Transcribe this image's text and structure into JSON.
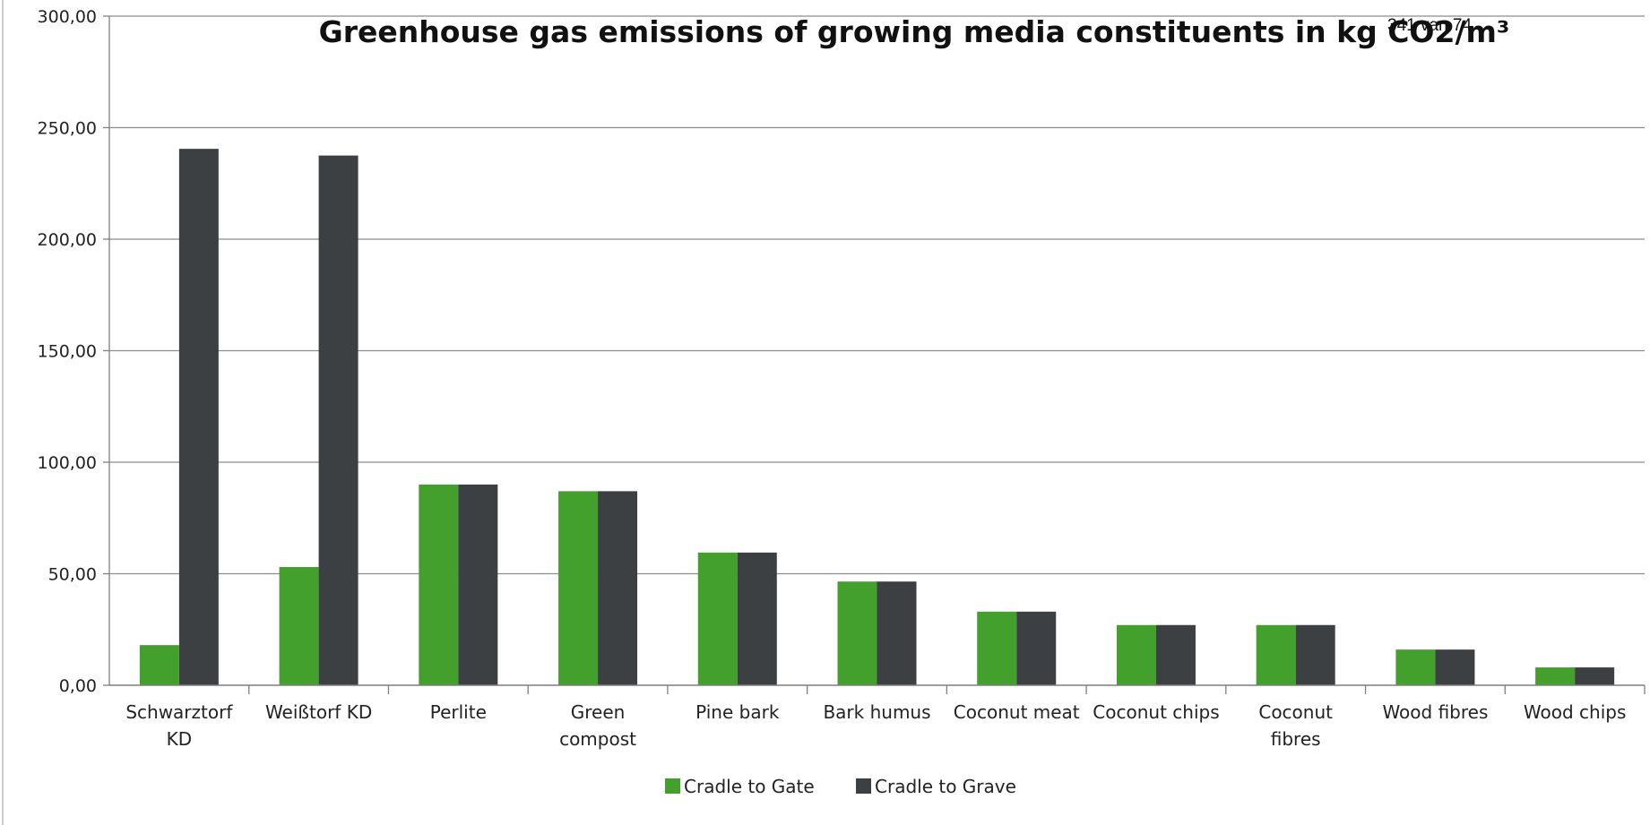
{
  "page_number": "341 van 74",
  "colors": {
    "cradle_to_gate": "#43a02d",
    "cradle_to_grave": "#3d4042",
    "grid": "#8c8c8c",
    "axis": "#7f7f7f"
  },
  "chart_data": {
    "type": "bar",
    "title": "Greenhouse gas emissions of growing media constituents in kg CO2/m³",
    "xlabel": "",
    "ylabel": "",
    "ylim": [
      0,
      300
    ],
    "yticks": [
      "0,00",
      "50,00",
      "100,00",
      "150,00",
      "200,00",
      "250,00",
      "300,00"
    ],
    "grid": true,
    "legend_position": "bottom",
    "categories": [
      [
        "Schwarztorf",
        "KD"
      ],
      [
        "Weißtorf KD"
      ],
      [
        "Perlite"
      ],
      [
        "Green",
        "compost"
      ],
      [
        "Pine bark"
      ],
      [
        "Bark humus"
      ],
      [
        "Coconut meat"
      ],
      [
        "Coconut chips"
      ],
      [
        "Coconut",
        "fibres"
      ],
      [
        "Wood fibres"
      ],
      [
        "Wood chips"
      ]
    ],
    "series": [
      {
        "name": "Cradle to Gate",
        "values": [
          18,
          53,
          90,
          87,
          59.5,
          46.5,
          33,
          27,
          27,
          16,
          8
        ]
      },
      {
        "name": "Cradle to Grave",
        "values": [
          240.5,
          237.5,
          90,
          87,
          59.5,
          46.5,
          33,
          27,
          27,
          16,
          8
        ]
      }
    ]
  }
}
